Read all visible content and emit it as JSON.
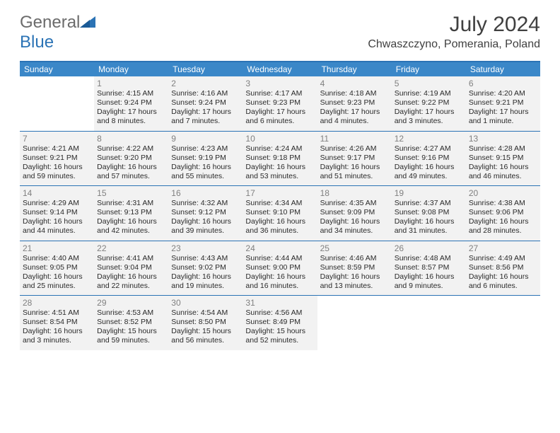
{
  "logo": {
    "text1": "General",
    "text2": "Blue"
  },
  "title": "July 2024",
  "location": "Chwaszczyno, Pomerania, Poland",
  "colors": {
    "header_bar": "#3a87c8",
    "rule": "#2b73b5",
    "shaded": "#f2f2f2",
    "text": "#2a2a2a",
    "daynum": "#808080",
    "logo_gray": "#6b6b6b",
    "logo_blue": "#2b73b5"
  },
  "day_names": [
    "Sunday",
    "Monday",
    "Tuesday",
    "Wednesday",
    "Thursday",
    "Friday",
    "Saturday"
  ],
  "weeks": [
    [
      {
        "num": "",
        "sunrise": "",
        "sunset": "",
        "daylight": ""
      },
      {
        "num": "1",
        "sunrise": "Sunrise: 4:15 AM",
        "sunset": "Sunset: 9:24 PM",
        "daylight": "Daylight: 17 hours and 8 minutes."
      },
      {
        "num": "2",
        "sunrise": "Sunrise: 4:16 AM",
        "sunset": "Sunset: 9:24 PM",
        "daylight": "Daylight: 17 hours and 7 minutes."
      },
      {
        "num": "3",
        "sunrise": "Sunrise: 4:17 AM",
        "sunset": "Sunset: 9:23 PM",
        "daylight": "Daylight: 17 hours and 6 minutes."
      },
      {
        "num": "4",
        "sunrise": "Sunrise: 4:18 AM",
        "sunset": "Sunset: 9:23 PM",
        "daylight": "Daylight: 17 hours and 4 minutes."
      },
      {
        "num": "5",
        "sunrise": "Sunrise: 4:19 AM",
        "sunset": "Sunset: 9:22 PM",
        "daylight": "Daylight: 17 hours and 3 minutes."
      },
      {
        "num": "6",
        "sunrise": "Sunrise: 4:20 AM",
        "sunset": "Sunset: 9:21 PM",
        "daylight": "Daylight: 17 hours and 1 minute."
      }
    ],
    [
      {
        "num": "7",
        "sunrise": "Sunrise: 4:21 AM",
        "sunset": "Sunset: 9:21 PM",
        "daylight": "Daylight: 16 hours and 59 minutes."
      },
      {
        "num": "8",
        "sunrise": "Sunrise: 4:22 AM",
        "sunset": "Sunset: 9:20 PM",
        "daylight": "Daylight: 16 hours and 57 minutes."
      },
      {
        "num": "9",
        "sunrise": "Sunrise: 4:23 AM",
        "sunset": "Sunset: 9:19 PM",
        "daylight": "Daylight: 16 hours and 55 minutes."
      },
      {
        "num": "10",
        "sunrise": "Sunrise: 4:24 AM",
        "sunset": "Sunset: 9:18 PM",
        "daylight": "Daylight: 16 hours and 53 minutes."
      },
      {
        "num": "11",
        "sunrise": "Sunrise: 4:26 AM",
        "sunset": "Sunset: 9:17 PM",
        "daylight": "Daylight: 16 hours and 51 minutes."
      },
      {
        "num": "12",
        "sunrise": "Sunrise: 4:27 AM",
        "sunset": "Sunset: 9:16 PM",
        "daylight": "Daylight: 16 hours and 49 minutes."
      },
      {
        "num": "13",
        "sunrise": "Sunrise: 4:28 AM",
        "sunset": "Sunset: 9:15 PM",
        "daylight": "Daylight: 16 hours and 46 minutes."
      }
    ],
    [
      {
        "num": "14",
        "sunrise": "Sunrise: 4:29 AM",
        "sunset": "Sunset: 9:14 PM",
        "daylight": "Daylight: 16 hours and 44 minutes."
      },
      {
        "num": "15",
        "sunrise": "Sunrise: 4:31 AM",
        "sunset": "Sunset: 9:13 PM",
        "daylight": "Daylight: 16 hours and 42 minutes."
      },
      {
        "num": "16",
        "sunrise": "Sunrise: 4:32 AM",
        "sunset": "Sunset: 9:12 PM",
        "daylight": "Daylight: 16 hours and 39 minutes."
      },
      {
        "num": "17",
        "sunrise": "Sunrise: 4:34 AM",
        "sunset": "Sunset: 9:10 PM",
        "daylight": "Daylight: 16 hours and 36 minutes."
      },
      {
        "num": "18",
        "sunrise": "Sunrise: 4:35 AM",
        "sunset": "Sunset: 9:09 PM",
        "daylight": "Daylight: 16 hours and 34 minutes."
      },
      {
        "num": "19",
        "sunrise": "Sunrise: 4:37 AM",
        "sunset": "Sunset: 9:08 PM",
        "daylight": "Daylight: 16 hours and 31 minutes."
      },
      {
        "num": "20",
        "sunrise": "Sunrise: 4:38 AM",
        "sunset": "Sunset: 9:06 PM",
        "daylight": "Daylight: 16 hours and 28 minutes."
      }
    ],
    [
      {
        "num": "21",
        "sunrise": "Sunrise: 4:40 AM",
        "sunset": "Sunset: 9:05 PM",
        "daylight": "Daylight: 16 hours and 25 minutes."
      },
      {
        "num": "22",
        "sunrise": "Sunrise: 4:41 AM",
        "sunset": "Sunset: 9:04 PM",
        "daylight": "Daylight: 16 hours and 22 minutes."
      },
      {
        "num": "23",
        "sunrise": "Sunrise: 4:43 AM",
        "sunset": "Sunset: 9:02 PM",
        "daylight": "Daylight: 16 hours and 19 minutes."
      },
      {
        "num": "24",
        "sunrise": "Sunrise: 4:44 AM",
        "sunset": "Sunset: 9:00 PM",
        "daylight": "Daylight: 16 hours and 16 minutes."
      },
      {
        "num": "25",
        "sunrise": "Sunrise: 4:46 AM",
        "sunset": "Sunset: 8:59 PM",
        "daylight": "Daylight: 16 hours and 13 minutes."
      },
      {
        "num": "26",
        "sunrise": "Sunrise: 4:48 AM",
        "sunset": "Sunset: 8:57 PM",
        "daylight": "Daylight: 16 hours and 9 minutes."
      },
      {
        "num": "27",
        "sunrise": "Sunrise: 4:49 AM",
        "sunset": "Sunset: 8:56 PM",
        "daylight": "Daylight: 16 hours and 6 minutes."
      }
    ],
    [
      {
        "num": "28",
        "sunrise": "Sunrise: 4:51 AM",
        "sunset": "Sunset: 8:54 PM",
        "daylight": "Daylight: 16 hours and 3 minutes."
      },
      {
        "num": "29",
        "sunrise": "Sunrise: 4:53 AM",
        "sunset": "Sunset: 8:52 PM",
        "daylight": "Daylight: 15 hours and 59 minutes."
      },
      {
        "num": "30",
        "sunrise": "Sunrise: 4:54 AM",
        "sunset": "Sunset: 8:50 PM",
        "daylight": "Daylight: 15 hours and 56 minutes."
      },
      {
        "num": "31",
        "sunrise": "Sunrise: 4:56 AM",
        "sunset": "Sunset: 8:49 PM",
        "daylight": "Daylight: 15 hours and 52 minutes."
      },
      {
        "num": "",
        "sunrise": "",
        "sunset": "",
        "daylight": ""
      },
      {
        "num": "",
        "sunrise": "",
        "sunset": "",
        "daylight": ""
      },
      {
        "num": "",
        "sunrise": "",
        "sunset": "",
        "daylight": ""
      }
    ]
  ]
}
